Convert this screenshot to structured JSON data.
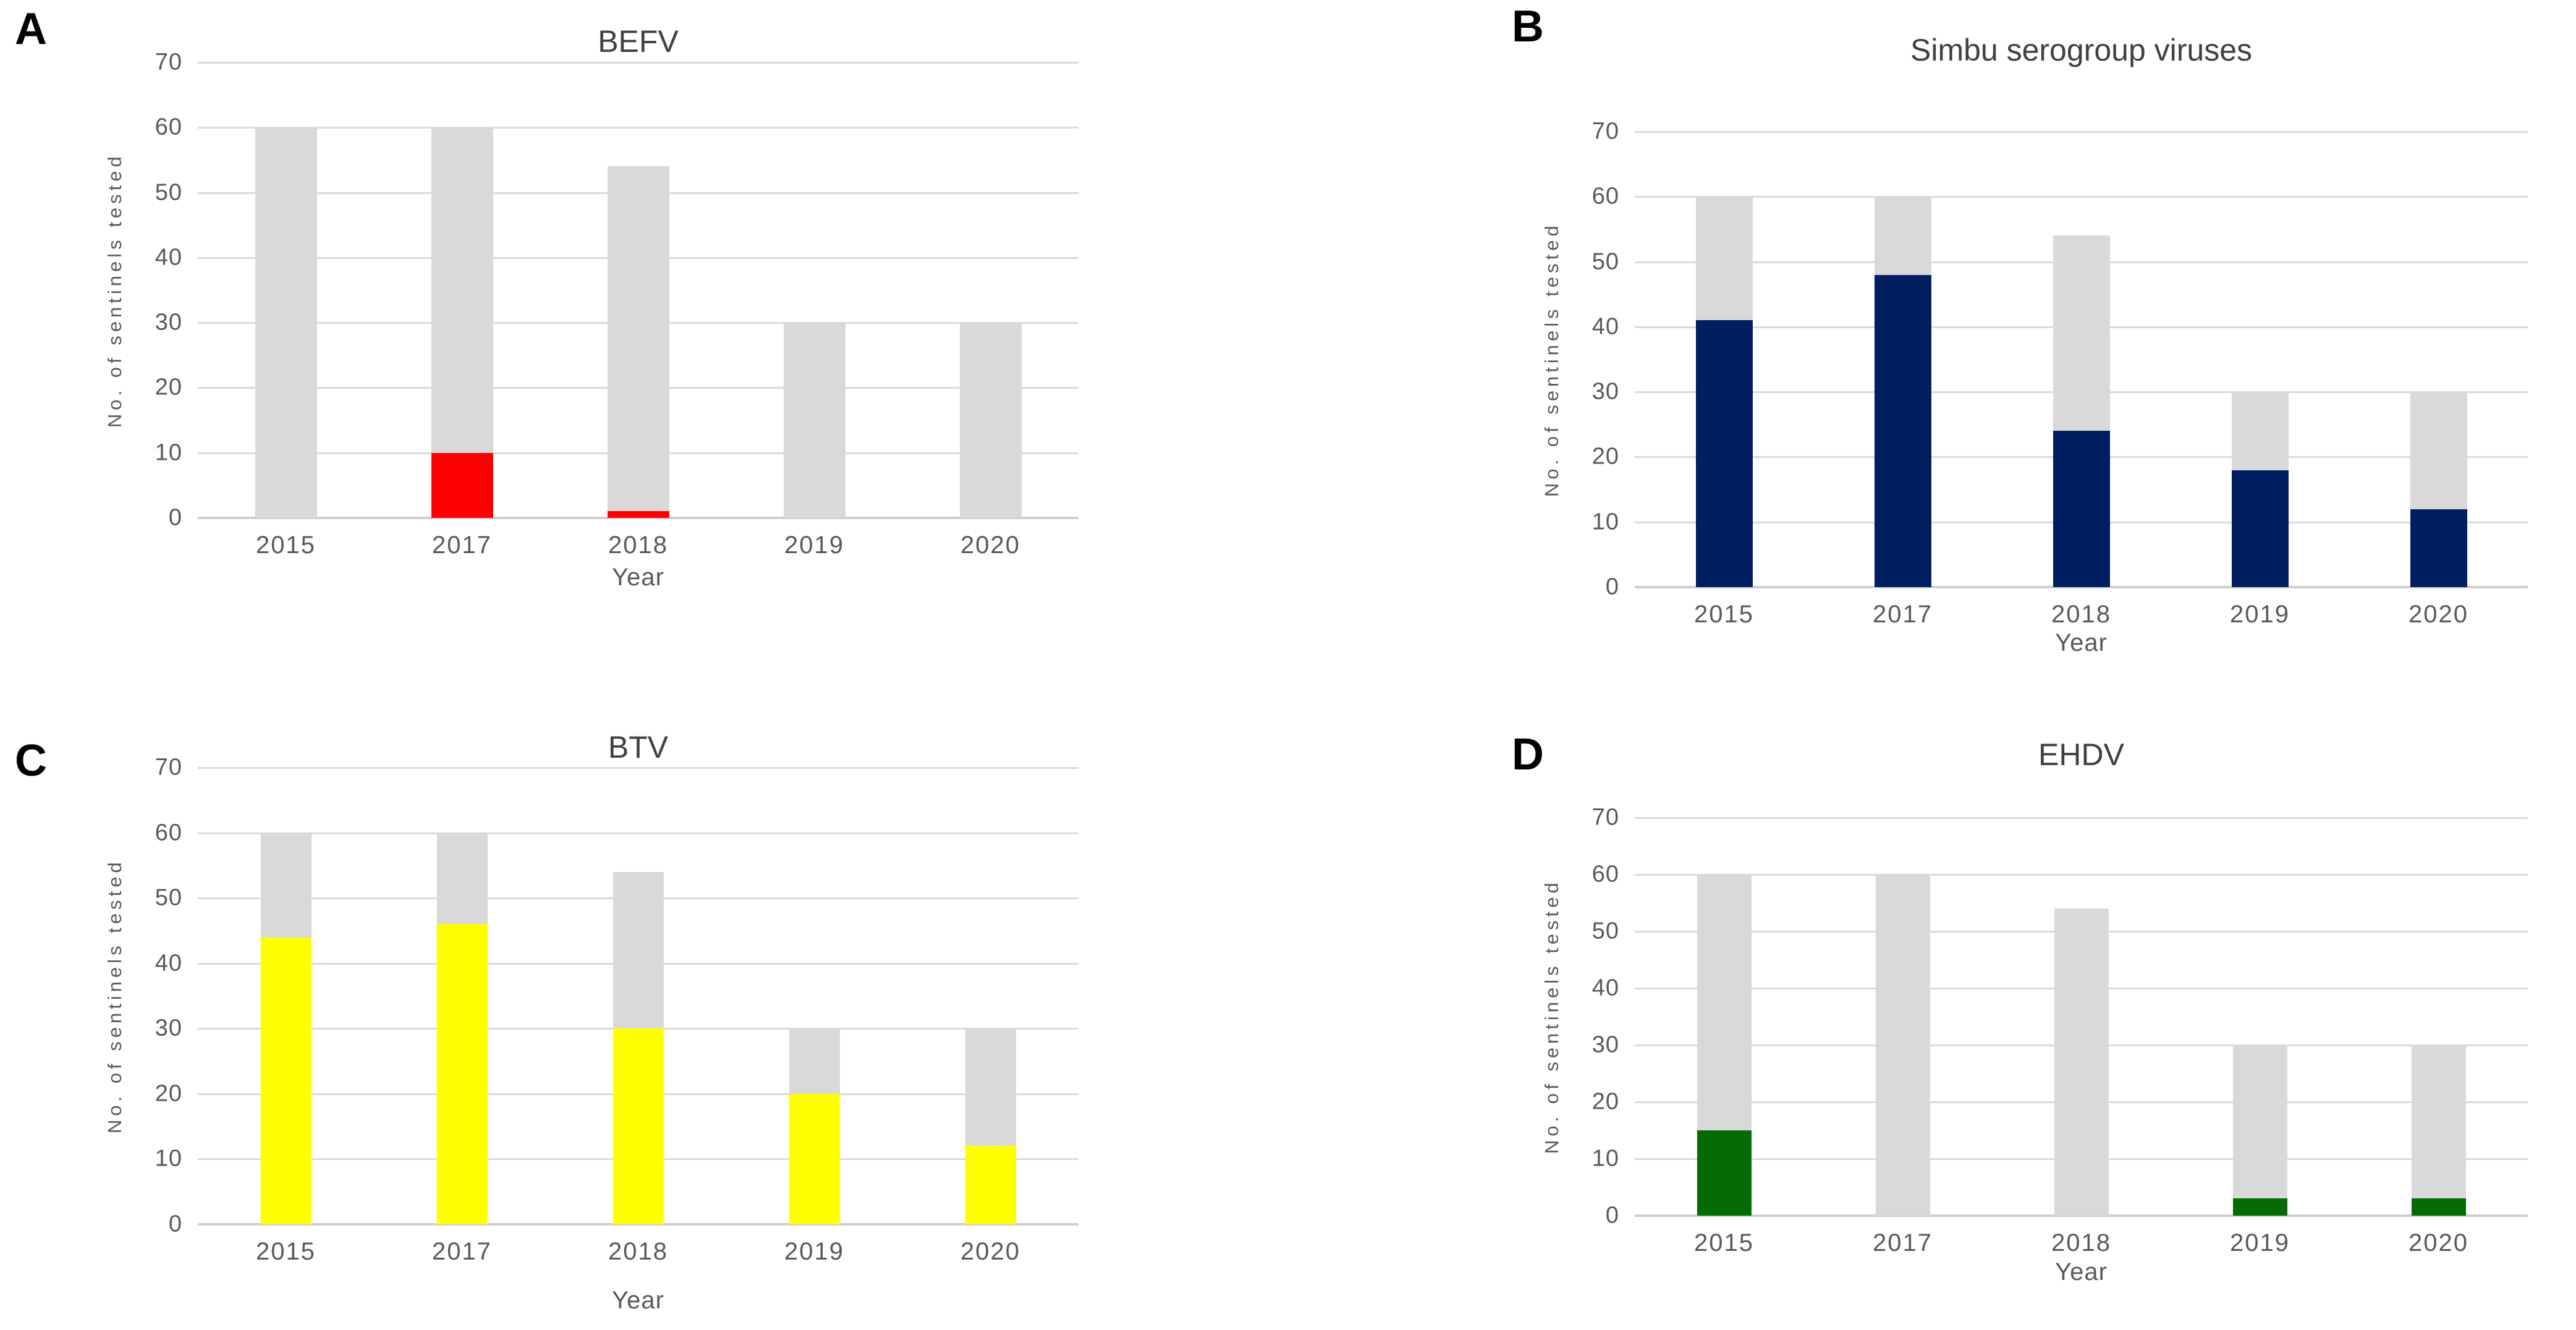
{
  "colors": {
    "background": "#FFFFFF",
    "tested_grey_bar": "#D9D9D9",
    "gridline": "#DADADA",
    "axis_line": "#CFCFCF",
    "axis_text": "#595959",
    "title_text": "#404040",
    "panel_label_text": "#000000",
    "panel_a_positive": "#FF0000",
    "panel_b_positive": "#001F60",
    "panel_c_positive": "#FFFF00",
    "panel_d_positive": "#056B05"
  },
  "chart_data": [
    {
      "type": "bar",
      "stacked": true,
      "panel": "A",
      "title": "BEFV",
      "xlabel": "Year",
      "ylabel": "No. of sentinels tested",
      "ylim": [
        0,
        70
      ],
      "yticks": [
        70,
        60,
        50,
        40,
        30,
        20,
        10,
        0
      ],
      "grid": "horizontal",
      "legend": "none",
      "categories": [
        "2015",
        "2017",
        "2018",
        "2019",
        "2020"
      ],
      "totals_tested": [
        60,
        60,
        54,
        30,
        30
      ],
      "series": [
        {
          "name": "positive (red segment)",
          "color": "#FF0000",
          "values": [
            0,
            10,
            1,
            0,
            0
          ]
        },
        {
          "name": "remaining tested (grey segment)",
          "color": "#D9D9D9",
          "values": [
            60,
            50,
            53,
            30,
            30
          ]
        }
      ]
    },
    {
      "type": "bar",
      "stacked": true,
      "panel": "B",
      "title": "Simbu serogroup viruses",
      "xlabel": "Year",
      "ylabel": "No. of sentinels tested",
      "ylim": [
        0,
        70
      ],
      "yticks": [
        70,
        60,
        50,
        40,
        30,
        20,
        10,
        0
      ],
      "grid": "horizontal",
      "legend": "none",
      "categories": [
        "2015",
        "2017",
        "2018",
        "2019",
        "2020"
      ],
      "totals_tested": [
        60,
        60,
        54,
        30,
        30
      ],
      "series": [
        {
          "name": "positive (navy segment)",
          "color": "#001F60",
          "values": [
            41,
            48,
            24,
            18,
            12
          ]
        },
        {
          "name": "remaining tested (grey segment)",
          "color": "#D9D9D9",
          "values": [
            19,
            12,
            30,
            12,
            18
          ]
        }
      ]
    },
    {
      "type": "bar",
      "stacked": true,
      "panel": "C",
      "title": "BTV",
      "xlabel": "Year",
      "ylabel": "No. of sentinels tested",
      "ylim": [
        0,
        70
      ],
      "yticks": [
        70,
        60,
        50,
        40,
        30,
        20,
        10,
        0
      ],
      "grid": "horizontal",
      "legend": "none",
      "categories": [
        "2015",
        "2017",
        "2018",
        "2019",
        "2020"
      ],
      "totals_tested": [
        60,
        60,
        54,
        30,
        30
      ],
      "series": [
        {
          "name": "positive (yellow segment)",
          "color": "#FFFF00",
          "values": [
            44,
            46,
            30,
            20,
            12
          ]
        },
        {
          "name": "remaining tested (grey segment)",
          "color": "#D9D9D9",
          "values": [
            16,
            14,
            24,
            10,
            18
          ]
        }
      ]
    },
    {
      "type": "bar",
      "stacked": true,
      "panel": "D",
      "title": "EHDV",
      "xlabel": "Year",
      "ylabel": "No. of sentinels tested",
      "ylim": [
        0,
        70
      ],
      "yticks": [
        70,
        60,
        50,
        40,
        30,
        20,
        10,
        0
      ],
      "grid": "horizontal",
      "legend": "none",
      "categories": [
        "2015",
        "2017",
        "2018",
        "2019",
        "2020"
      ],
      "totals_tested": [
        60,
        60,
        54,
        30,
        30
      ],
      "series": [
        {
          "name": "positive (green segment)",
          "color": "#056B05",
          "values": [
            15,
            0,
            0,
            3,
            3
          ]
        },
        {
          "name": "remaining tested (grey segment)",
          "color": "#D9D9D9",
          "values": [
            45,
            60,
            54,
            27,
            27
          ]
        }
      ]
    }
  ]
}
